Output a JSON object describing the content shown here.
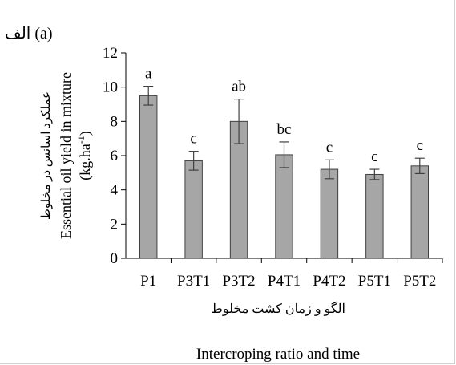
{
  "chart_data": {
    "type": "bar",
    "panel_label": "الف (a)",
    "categories": [
      "P1",
      "P3T1",
      "P3T2",
      "P4T1",
      "P4T2",
      "P5T1",
      "P5T2"
    ],
    "values": [
      9.5,
      5.7,
      8.0,
      6.05,
      5.2,
      4.9,
      5.4
    ],
    "errors": [
      0.55,
      0.55,
      1.3,
      0.75,
      0.55,
      0.3,
      0.45
    ],
    "letters": [
      "a",
      "c",
      "ab",
      "bc",
      "c",
      "c",
      "c"
    ],
    "ylim": [
      0,
      12
    ],
    "yticks": [
      0,
      2,
      4,
      6,
      8,
      10,
      12
    ],
    "ylabel_fa": "عملکرد اسانس در مخلوط",
    "ylabel_en": "Essential oil yield in mixture",
    "ylabel_unit_pre": "(kg.ha",
    "ylabel_unit_sup": "-1",
    "ylabel_unit_post": ")",
    "xlabel_fa": "الگو و زمان کشت مخلوط",
    "xlabel_en": "Intercroping ratio and time",
    "bar_color": "#a6a6a6",
    "bar_edge": "#404040",
    "grid": false
  }
}
